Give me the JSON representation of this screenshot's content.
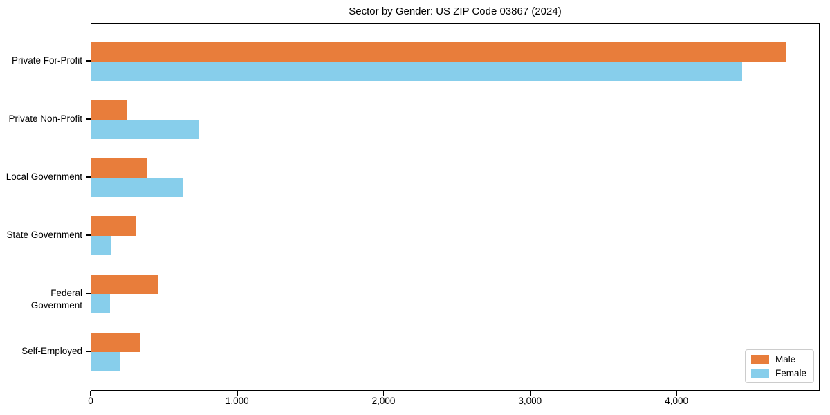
{
  "chart_data": {
    "type": "bar",
    "orientation": "horizontal",
    "title": "Sector by Gender: US ZIP Code 03867 (2024)",
    "categories": [
      "Private For-Profit",
      "Private Non-Profit",
      "Local Government",
      "State Government",
      "Federal Government",
      "Self-Employed"
    ],
    "series": [
      {
        "name": "Male",
        "color": "#e87d3b",
        "values": [
          4740,
          240,
          377,
          307,
          451,
          333
        ]
      },
      {
        "name": "Female",
        "color": "#87ceeb",
        "values": [
          4443,
          736,
          623,
          137,
          127,
          193
        ]
      }
    ],
    "xlabel": "",
    "ylabel": "",
    "xlim": [
      0,
      4977
    ],
    "x_ticks": [
      0,
      1000,
      2000,
      3000,
      4000
    ],
    "x_tick_labels": [
      "0",
      "1,000",
      "2,000",
      "3,000",
      "4,000"
    ],
    "grid": false,
    "legend": {
      "position": "lower right",
      "entries": [
        "Male",
        "Female"
      ]
    },
    "background_color": "#ffffff",
    "spine_color": "#000000"
  }
}
